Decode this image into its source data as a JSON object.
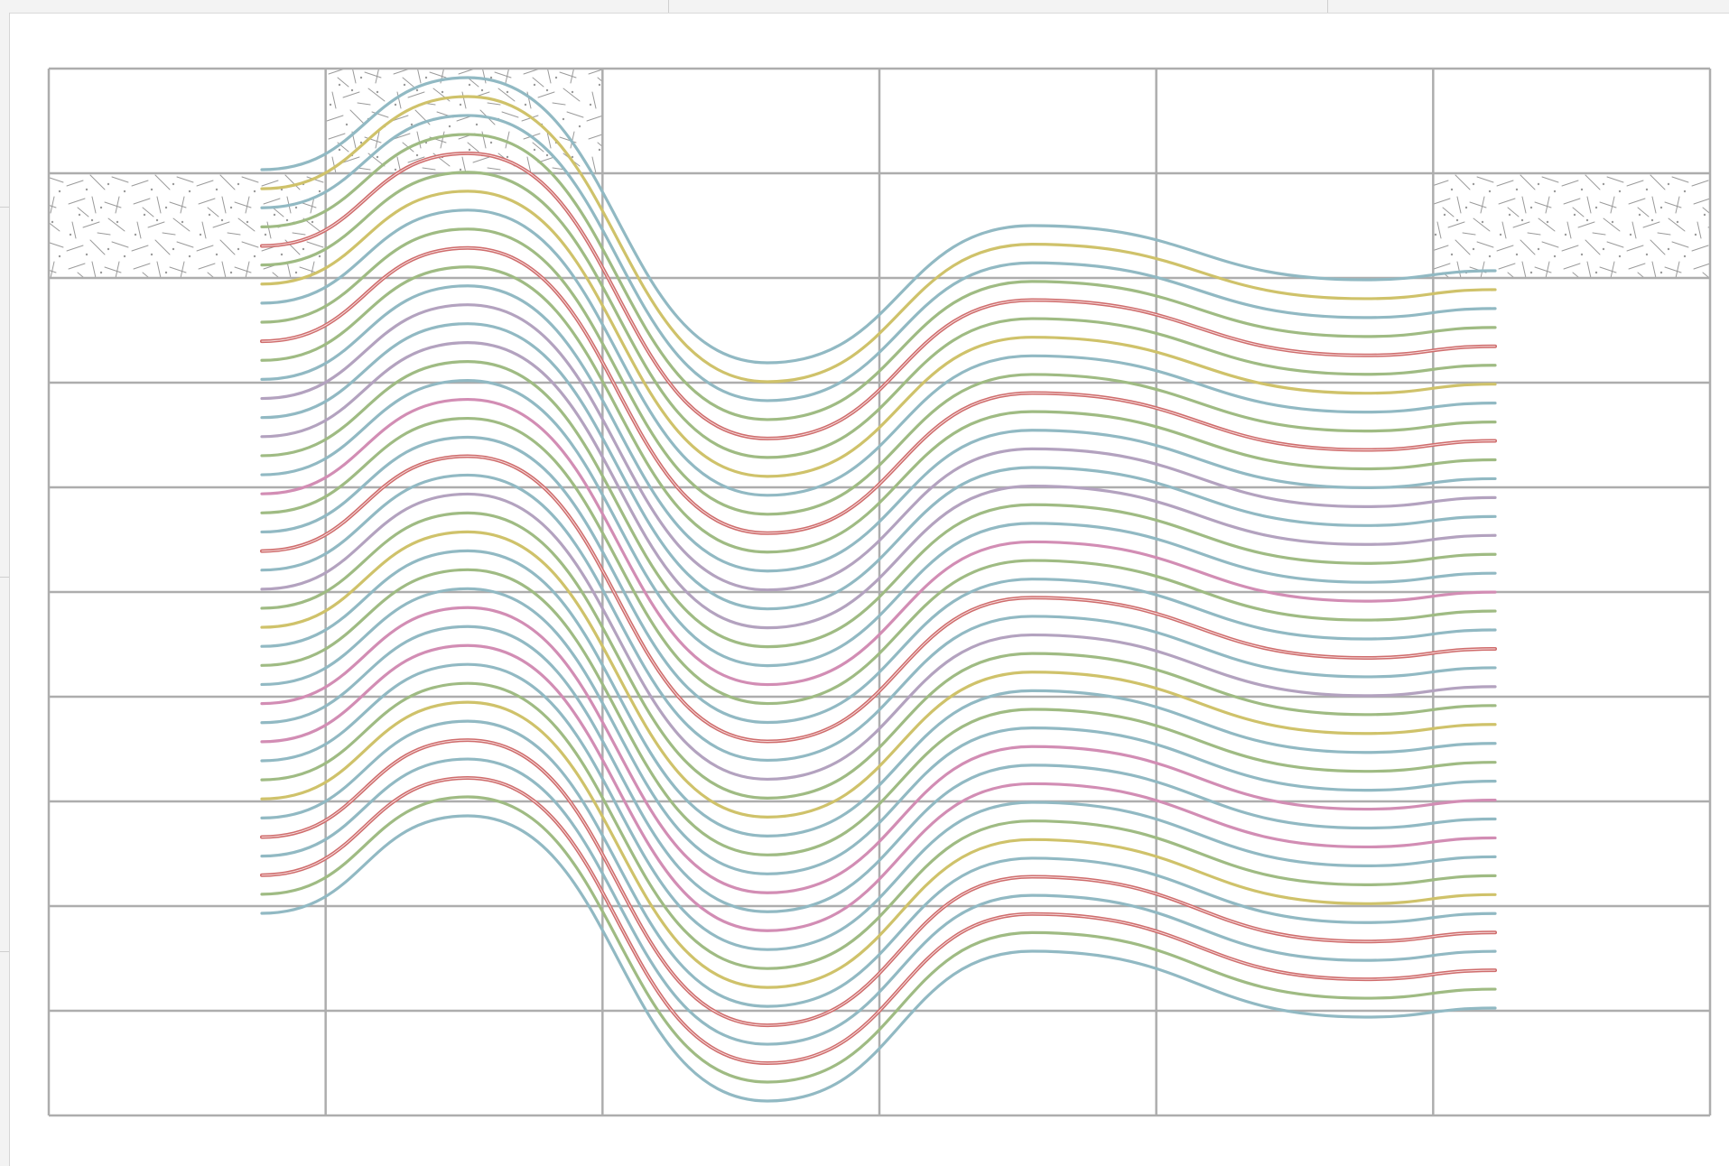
{
  "canvas": {
    "background": "#ffffff"
  },
  "grid": {
    "columns": 6,
    "rows": 10,
    "line_color": "#adadad"
  },
  "texture": {
    "name": "speckled-fill-pattern",
    "stroke": "#9a9a9a",
    "highlighted_cells": [
      {
        "row": 0,
        "col": 1
      },
      {
        "row": 1,
        "col": 0
      },
      {
        "row": 1,
        "col": 5
      }
    ]
  },
  "wave_lines": {
    "shape": "sine-like-wave",
    "colors": {
      "blue": "#91b9c3",
      "yellow": "#cfc26a",
      "green": "#9fbb83",
      "red": "#cf6c6c",
      "purple": "#b3a2bf",
      "pink": "#d28db4"
    },
    "color_sequence": [
      "blue",
      "yellow",
      "blue",
      "green",
      "red",
      "green",
      "yellow",
      "blue",
      "green",
      "red",
      "green",
      "blue",
      "purple",
      "blue",
      "purple",
      "green",
      "blue",
      "pink",
      "green",
      "blue",
      "red",
      "blue",
      "purple",
      "green",
      "yellow",
      "blue",
      "green",
      "blue",
      "pink",
      "blue",
      "pink",
      "blue",
      "green",
      "yellow",
      "blue",
      "red",
      "blue",
      "red",
      "green",
      "blue"
    ]
  }
}
